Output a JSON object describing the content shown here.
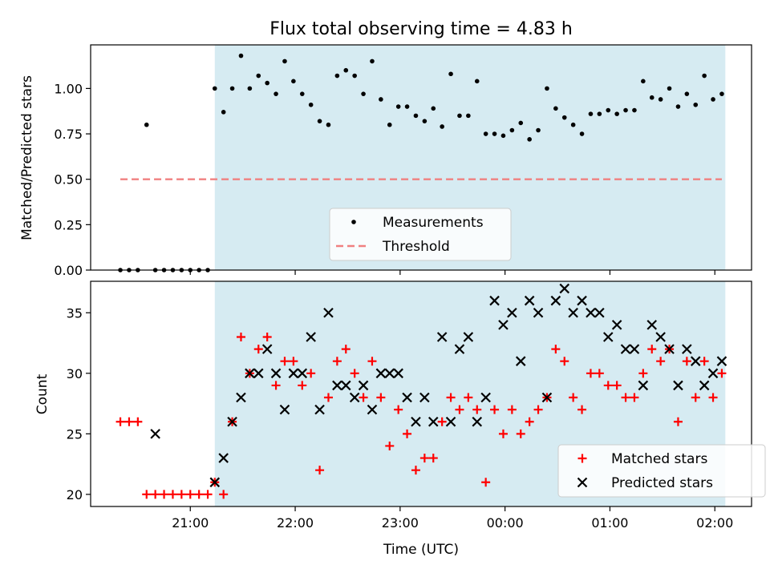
{
  "chart_data": [
    {
      "type": "scatter",
      "title": "Flux total observing time = 4.83 h",
      "ylabel": "Matched/Predicted stars",
      "xlabel": "",
      "ylim": [
        0,
        1.24
      ],
      "yticks": [
        0.0,
        0.25,
        0.5,
        0.75,
        1.0
      ],
      "ytick_labels": [
        "0.00",
        "0.25",
        "0.50",
        "0.75",
        "1.00"
      ],
      "x_is_time": true,
      "xticks_hours": [
        21,
        22,
        23,
        24,
        25,
        26
      ],
      "xtick_labels": [],
      "legend_placement": "lower-center",
      "observing_window": {
        "start": "21:14",
        "end": "02:06",
        "color": "#add8e6"
      },
      "series": [
        {
          "name": "Measurements",
          "color": "#000000",
          "marker": "dot",
          "x": [
            "20:20",
            "20:25",
            "20:30",
            "20:35",
            "20:40",
            "20:45",
            "20:50",
            "20:55",
            "21:00",
            "21:05",
            "21:10",
            "21:14",
            "21:19",
            "21:24",
            "21:29",
            "21:34",
            "21:39",
            "21:44",
            "21:49",
            "21:54",
            "21:59",
            "22:04",
            "22:09",
            "22:14",
            "22:19",
            "22:24",
            "22:29",
            "22:34",
            "22:39",
            "22:44",
            "22:49",
            "22:54",
            "22:59",
            "23:04",
            "23:09",
            "23:14",
            "23:19",
            "23:24",
            "23:29",
            "23:34",
            "23:39",
            "23:44",
            "23:49",
            "23:54",
            "23:59",
            "00:04",
            "00:09",
            "00:14",
            "00:19",
            "00:24",
            "00:29",
            "00:34",
            "00:39",
            "00:44",
            "00:49",
            "00:54",
            "00:59",
            "01:04",
            "01:09",
            "01:14",
            "01:19",
            "01:24",
            "01:29",
            "01:34",
            "01:39",
            "01:44",
            "01:49",
            "01:54",
            "01:59",
            "02:04"
          ],
          "y": [
            0.0,
            0.0,
            0.0,
            0.8,
            0.0,
            0.0,
            0.0,
            0.0,
            0.0,
            0.0,
            0.0,
            1.0,
            0.87,
            1.0,
            1.18,
            1.0,
            1.07,
            1.03,
            0.97,
            1.15,
            1.04,
            0.97,
            0.91,
            0.82,
            0.8,
            1.07,
            1.1,
            1.07,
            0.97,
            1.15,
            0.94,
            0.8,
            0.9,
            0.9,
            0.85,
            0.82,
            0.89,
            0.79,
            1.08,
            0.85,
            0.85,
            1.04,
            0.75,
            0.75,
            0.74,
            0.77,
            0.81,
            0.72,
            0.77,
            1.0,
            0.89,
            0.84,
            0.8,
            0.75,
            0.86,
            0.86,
            0.88,
            0.86,
            0.88,
            0.88,
            1.04,
            0.95,
            0.94,
            1.0,
            0.9,
            0.97,
            0.91,
            1.07,
            0.94,
            0.97
          ]
        },
        {
          "name": "Threshold",
          "color": "#f08080",
          "style": "dashed",
          "x": [
            "20:20",
            "02:04"
          ],
          "y": [
            0.5,
            0.5
          ]
        }
      ]
    },
    {
      "type": "scatter",
      "title": "",
      "ylabel": "Count",
      "xlabel": "Time (UTC)",
      "ylim": [
        19.0,
        37.6
      ],
      "yticks": [
        20,
        25,
        30,
        35
      ],
      "ytick_labels": [
        "20",
        "25",
        "30",
        "35"
      ],
      "x_is_time": true,
      "xticks_hours": [
        21,
        22,
        23,
        24,
        25,
        26
      ],
      "xtick_labels": [
        "21:00",
        "22:00",
        "23:00",
        "00:00",
        "01:00",
        "02:00"
      ],
      "legend_placement": "lower-right",
      "observing_window": {
        "start": "21:14",
        "end": "02:06",
        "color": "#add8e6"
      },
      "series": [
        {
          "name": "Matched stars",
          "color": "#ff0000",
          "marker": "plus",
          "x": [
            "20:20",
            "20:25",
            "20:30",
            "20:35",
            "20:40",
            "20:45",
            "20:50",
            "20:55",
            "21:00",
            "21:05",
            "21:10",
            "21:14",
            "21:19",
            "21:24",
            "21:29",
            "21:34",
            "21:39",
            "21:44",
            "21:49",
            "21:54",
            "21:59",
            "22:04",
            "22:09",
            "22:14",
            "22:19",
            "22:24",
            "22:29",
            "22:34",
            "22:39",
            "22:44",
            "22:49",
            "22:54",
            "22:59",
            "23:04",
            "23:09",
            "23:14",
            "23:19",
            "23:24",
            "23:29",
            "23:34",
            "23:39",
            "23:44",
            "23:49",
            "23:54",
            "23:59",
            "00:04",
            "00:09",
            "00:14",
            "00:19",
            "00:24",
            "00:29",
            "00:34",
            "00:39",
            "00:44",
            "00:49",
            "00:54",
            "00:59",
            "01:04",
            "01:09",
            "01:14",
            "01:19",
            "01:24",
            "01:29",
            "01:34",
            "01:39",
            "01:44",
            "01:49",
            "01:54",
            "01:59",
            "02:04"
          ],
          "y": [
            26,
            26,
            26,
            20,
            20,
            20,
            20,
            20,
            20,
            20,
            20,
            21,
            20,
            26,
            33,
            30,
            32,
            33,
            29,
            31,
            31,
            29,
            30,
            22,
            28,
            31,
            32,
            30,
            28,
            31,
            28,
            24,
            27,
            25,
            22,
            23,
            23,
            26,
            28,
            27,
            28,
            27,
            21,
            27,
            25,
            27,
            25,
            26,
            27,
            28,
            32,
            31,
            28,
            27,
            30,
            30,
            29,
            29,
            28,
            28,
            30,
            32,
            31,
            32,
            26,
            31,
            28,
            31,
            28,
            30
          ]
        },
        {
          "name": "Predicted stars",
          "color": "#000000",
          "marker": "x",
          "x": [
            "20:40",
            "21:14",
            "21:19",
            "21:24",
            "21:29",
            "21:34",
            "21:39",
            "21:44",
            "21:49",
            "21:54",
            "21:59",
            "22:04",
            "22:09",
            "22:14",
            "22:19",
            "22:24",
            "22:29",
            "22:34",
            "22:39",
            "22:44",
            "22:49",
            "22:54",
            "22:59",
            "23:04",
            "23:09",
            "23:14",
            "23:19",
            "23:24",
            "23:29",
            "23:34",
            "23:39",
            "23:44",
            "23:49",
            "23:54",
            "23:59",
            "00:04",
            "00:09",
            "00:14",
            "00:19",
            "00:24",
            "00:29",
            "00:34",
            "00:39",
            "00:44",
            "00:49",
            "00:54",
            "00:59",
            "01:04",
            "01:09",
            "01:14",
            "01:19",
            "01:24",
            "01:29",
            "01:34",
            "01:39",
            "01:44",
            "01:49",
            "01:54",
            "01:59",
            "02:04"
          ],
          "y": [
            25,
            21,
            23,
            26,
            28,
            30,
            30,
            32,
            30,
            27,
            30,
            30,
            33,
            27,
            35,
            29,
            29,
            28,
            29,
            27,
            30,
            30,
            30,
            28,
            26,
            28,
            26,
            33,
            26,
            32,
            33,
            26,
            28,
            36,
            34,
            35,
            31,
            36,
            35,
            28,
            36,
            37,
            35,
            36,
            35,
            35,
            33,
            34,
            32,
            32,
            29,
            34,
            33,
            32,
            29,
            32,
            31,
            29,
            30,
            31
          ]
        }
      ]
    }
  ]
}
